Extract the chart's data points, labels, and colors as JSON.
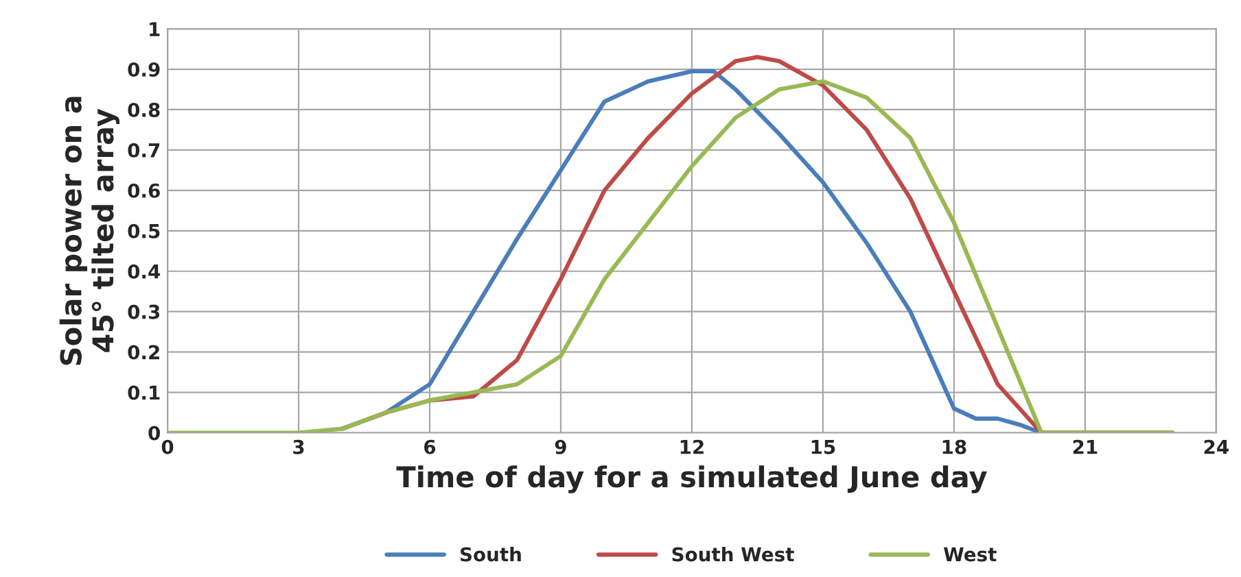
{
  "chart_data": {
    "type": "line",
    "xlabel": "Time of day for a simulated June day",
    "ylabel": "Solar power on a\n45° tilted array",
    "xlim": [
      0,
      24
    ],
    "xticks": [
      0,
      3,
      6,
      9,
      12,
      15,
      18,
      21,
      24
    ],
    "ylim": [
      0,
      1
    ],
    "yticks": [
      0,
      0.1,
      0.2,
      0.3,
      0.4,
      0.5,
      0.6,
      0.7,
      0.8,
      0.9,
      1
    ],
    "grid": true,
    "legend": "bottom",
    "marker": "none",
    "line_style": "solid",
    "series": [
      {
        "name": "South",
        "color": "#4a7ebb",
        "x": [
          4,
          5,
          6,
          7,
          8,
          9,
          10,
          11,
          12,
          12.5,
          13,
          14,
          15,
          16,
          17,
          18,
          18.5,
          19,
          19.5,
          20,
          21,
          23
        ],
        "values": [
          0.01,
          0.05,
          0.12,
          0.3,
          0.48,
          0.65,
          0.82,
          0.87,
          0.895,
          0.895,
          0.85,
          0.74,
          0.62,
          0.47,
          0.3,
          0.06,
          0.035,
          0.035,
          0.02,
          0,
          0,
          0
        ]
      },
      {
        "name": "South West",
        "color": "#be4b48",
        "x": [
          4,
          5,
          6,
          7,
          8,
          9,
          10,
          11,
          12,
          13,
          13.5,
          14,
          15,
          16,
          17,
          18,
          19,
          20,
          21,
          23
        ],
        "values": [
          0.01,
          0.05,
          0.08,
          0.09,
          0.18,
          0.38,
          0.6,
          0.73,
          0.84,
          0.92,
          0.93,
          0.92,
          0.86,
          0.75,
          0.58,
          0.35,
          0.12,
          0,
          0,
          0
        ]
      },
      {
        "name": "West",
        "color": "#98b954",
        "x": [
          0,
          3,
          4,
          5,
          6,
          7,
          8,
          9,
          10,
          11,
          12,
          13,
          14,
          15,
          16,
          17,
          18,
          19,
          20,
          21,
          23
        ],
        "values": [
          0,
          0,
          0.01,
          0.05,
          0.08,
          0.1,
          0.12,
          0.19,
          0.38,
          0.52,
          0.66,
          0.78,
          0.85,
          0.87,
          0.83,
          0.73,
          0.52,
          0.26,
          0,
          0,
          0
        ]
      }
    ]
  }
}
